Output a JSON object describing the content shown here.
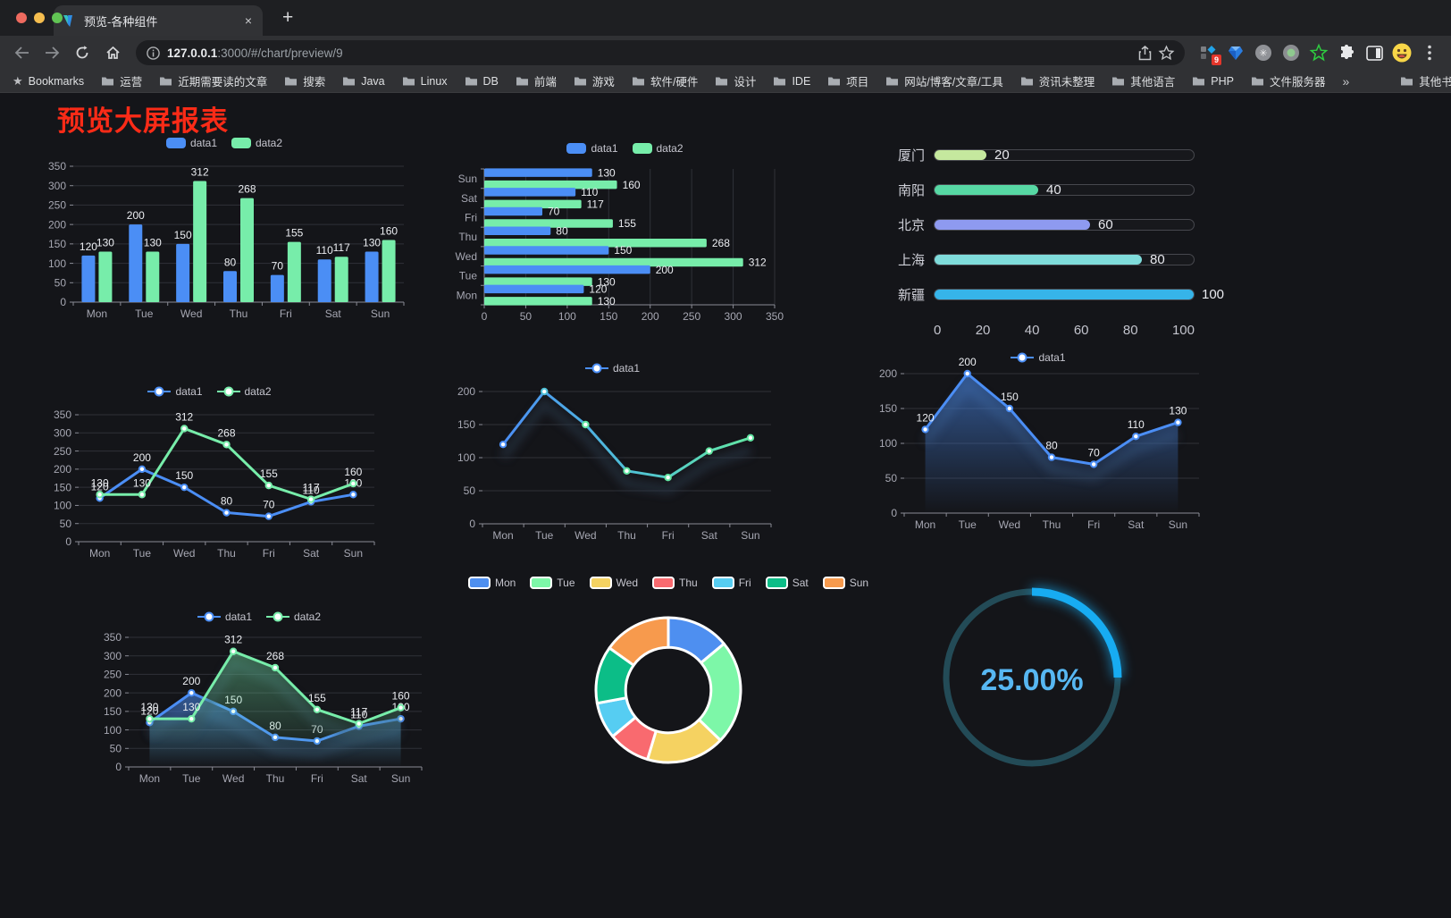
{
  "browser": {
    "traffic_lights": {
      "close": "#ee6a5f",
      "minimize": "#f5bd4f",
      "zoom": "#61c454"
    },
    "tab": {
      "title": "预览-各种组件",
      "close_label": "×"
    },
    "new_tab_label": "+",
    "url": {
      "host": "127.0.0.1",
      "rest": ":3000/#/chart/preview/9"
    },
    "extension_badge": "9",
    "bookmarks_root_label": "Bookmarks",
    "bookmarks": [
      "运营",
      "近期需要读的文章",
      "搜索",
      "Java",
      "Linux",
      "DB",
      "前端",
      "游戏",
      "软件/硬件",
      "设计",
      "IDE",
      "项目",
      "网站/博客/文章/工具",
      "资讯未整理",
      "其他语言",
      "PHP",
      "文件服务器"
    ],
    "bookmarks_overflow": "»",
    "other_bookmarks_label": "其他书签"
  },
  "page": {
    "title": "预览大屏报表",
    "title_color": "#fa2b17",
    "background": "#141519"
  },
  "chart_data": [
    {
      "id": "bar-vertical",
      "type": "bar",
      "categories": [
        "Mon",
        "Tue",
        "Wed",
        "Thu",
        "Fri",
        "Sat",
        "Sun"
      ],
      "series": [
        {
          "name": "data1",
          "color": "#4b8ef5",
          "values": [
            120,
            200,
            150,
            80,
            70,
            110,
            130
          ]
        },
        {
          "name": "data2",
          "color": "#77edaa",
          "values": [
            130,
            130,
            312,
            268,
            155,
            117,
            160
          ]
        }
      ],
      "ylim": [
        0,
        350
      ],
      "ytick": 50,
      "labels": true,
      "grid": true,
      "legend_position": "top"
    },
    {
      "id": "bar-horizontal",
      "type": "bar-horizontal",
      "categories": [
        "Mon",
        "Tue",
        "Wed",
        "Thu",
        "Fri",
        "Sat",
        "Sun"
      ],
      "series": [
        {
          "name": "data1",
          "color": "#4b8ef5",
          "values": [
            120,
            200,
            150,
            80,
            70,
            110,
            130
          ]
        },
        {
          "name": "data2",
          "color": "#77edaa",
          "values": [
            130,
            130,
            312,
            268,
            155,
            117,
            160
          ]
        }
      ],
      "xlim": [
        0,
        350
      ],
      "xtick": 50,
      "labels": true,
      "grid": true,
      "legend_position": "top"
    },
    {
      "id": "progress",
      "type": "bar-horizontal",
      "items": [
        {
          "label": "厦门",
          "value": 20,
          "color": "#c5e89e"
        },
        {
          "label": "南阳",
          "value": 40,
          "color": "#57d8a4"
        },
        {
          "label": "北京",
          "value": 60,
          "color": "#8e9af0"
        },
        {
          "label": "上海",
          "value": 80,
          "color": "#7fdcdb"
        },
        {
          "label": "新疆",
          "value": 100,
          "color": "#36b4e9"
        }
      ],
      "max": 100,
      "axis_ticks": [
        0,
        20,
        40,
        60,
        80,
        100
      ]
    },
    {
      "id": "line-dual",
      "type": "line",
      "categories": [
        "Mon",
        "Tue",
        "Wed",
        "Thu",
        "Fri",
        "Sat",
        "Sun"
      ],
      "series": [
        {
          "name": "data1",
          "color": "#4b8ef5",
          "values": [
            120,
            200,
            150,
            80,
            70,
            110,
            130
          ]
        },
        {
          "name": "data2",
          "color": "#77edaa",
          "values": [
            130,
            130,
            312,
            268,
            155,
            117,
            160
          ]
        }
      ],
      "ylim": [
        0,
        350
      ],
      "ytick": 50,
      "labels": true,
      "legend_position": "top"
    },
    {
      "id": "line-gradient",
      "type": "line",
      "categories": [
        "Mon",
        "Tue",
        "Wed",
        "Thu",
        "Fri",
        "Sat",
        "Sun"
      ],
      "series": [
        {
          "name": "data1",
          "color": "#4b8ef5",
          "gradient": [
            "#4b8ef5",
            "#4fc0d8",
            "#62e6a3"
          ],
          "values": [
            120,
            200,
            150,
            80,
            70,
            110,
            130
          ]
        }
      ],
      "ylim": [
        0,
        200
      ],
      "ytick": 50,
      "labels": false,
      "shadow": true,
      "legend_position": "top"
    },
    {
      "id": "area-single",
      "type": "area",
      "categories": [
        "Mon",
        "Tue",
        "Wed",
        "Thu",
        "Fri",
        "Sat",
        "Sun"
      ],
      "series": [
        {
          "name": "data1",
          "color": "#4b8ef5",
          "area": true,
          "values": [
            120,
            200,
            150,
            80,
            70,
            110,
            130
          ]
        }
      ],
      "ylim": [
        0,
        200
      ],
      "ytick": 50,
      "labels": true,
      "shadow": true,
      "legend_position": "top"
    },
    {
      "id": "area-dual",
      "type": "area",
      "categories": [
        "Mon",
        "Tue",
        "Wed",
        "Thu",
        "Fri",
        "Sat",
        "Sun"
      ],
      "series": [
        {
          "name": "data1",
          "color": "#4b8ef5",
          "area": true,
          "values": [
            120,
            200,
            150,
            80,
            70,
            110,
            130
          ]
        },
        {
          "name": "data2",
          "color": "#77edaa",
          "area": true,
          "values": [
            130,
            130,
            312,
            268,
            155,
            117,
            160
          ]
        }
      ],
      "ylim": [
        0,
        350
      ],
      "ytick": 50,
      "labels": true,
      "shadow": true,
      "legend_position": "top"
    },
    {
      "id": "donut",
      "type": "pie",
      "categories": [
        "Mon",
        "Tue",
        "Wed",
        "Thu",
        "Fri",
        "Sat",
        "Sun"
      ],
      "values": [
        120,
        200,
        150,
        80,
        70,
        110,
        130
      ],
      "colors": [
        "#4e8ff0",
        "#7df7a8",
        "#f5d261",
        "#f96a6f",
        "#56cdf2",
        "#0cbd87",
        "#f79a4d"
      ],
      "legend_position": "top",
      "inner_radius_ratio": 0.59
    },
    {
      "id": "gauge",
      "type": "gauge",
      "value": 25,
      "max": 100,
      "label": "25.00%",
      "color": "#17acf2",
      "track_color": "#234b57",
      "text_color": "#57b7f2"
    }
  ]
}
